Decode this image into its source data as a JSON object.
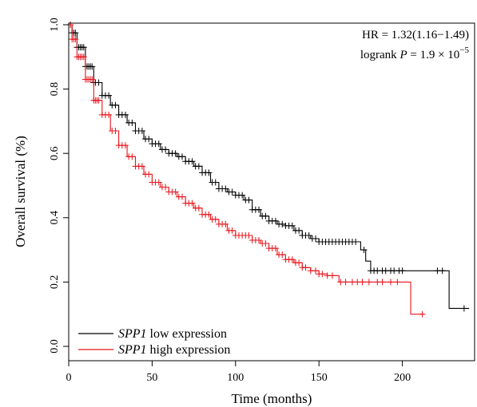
{
  "chart_data": {
    "type": "line",
    "subtype": "kaplan-meier",
    "xlabel": "Time (months)",
    "ylabel": "Overall survival (%)",
    "xlim": [
      0,
      240
    ],
    "ylim": [
      0,
      1
    ],
    "xticks": [
      "0",
      "50",
      "100",
      "150",
      "200"
    ],
    "yticks": [
      "0.0",
      "0.2",
      "0.4",
      "0.6",
      "0.8",
      "1.0"
    ],
    "annotations": {
      "hr": "HR = 1.32(1.16−1.49)",
      "logrank_prefix": "logrank ",
      "p_symbol": "P",
      "p_value": " = 1.9 × 10",
      "p_exponent": "−5"
    },
    "legend": {
      "position": "bottom-left",
      "entries": [
        {
          "gene": "SPP1",
          "label": " low expression",
          "color": "#000000"
        },
        {
          "gene": "SPP1",
          "label": " high expression",
          "color": "#e8141b"
        }
      ]
    },
    "series": [
      {
        "name": "SPP1 low expression",
        "color": "#000000",
        "points": [
          [
            0,
            1.0
          ],
          [
            2,
            0.975
          ],
          [
            5,
            0.93
          ],
          [
            10,
            0.87
          ],
          [
            15,
            0.82
          ],
          [
            20,
            0.78
          ],
          [
            25,
            0.75
          ],
          [
            30,
            0.72
          ],
          [
            35,
            0.695
          ],
          [
            40,
            0.67
          ],
          [
            45,
            0.645
          ],
          [
            50,
            0.63
          ],
          [
            55,
            0.612
          ],
          [
            60,
            0.6
          ],
          [
            65,
            0.59
          ],
          [
            70,
            0.575
          ],
          [
            75,
            0.56
          ],
          [
            80,
            0.54
          ],
          [
            85,
            0.51
          ],
          [
            90,
            0.49
          ],
          [
            95,
            0.48
          ],
          [
            100,
            0.47
          ],
          [
            105,
            0.455
          ],
          [
            110,
            0.425
          ],
          [
            115,
            0.405
          ],
          [
            120,
            0.39
          ],
          [
            125,
            0.38
          ],
          [
            130,
            0.375
          ],
          [
            135,
            0.36
          ],
          [
            140,
            0.345
          ],
          [
            145,
            0.335
          ],
          [
            150,
            0.325
          ],
          [
            160,
            0.325
          ],
          [
            172,
            0.325
          ],
          [
            175,
            0.3
          ],
          [
            178,
            0.265
          ],
          [
            181,
            0.235
          ],
          [
            200,
            0.235
          ],
          [
            228,
            0.235
          ],
          [
            228,
            0.118
          ],
          [
            240,
            0.118
          ]
        ],
        "censor_x": [
          1,
          2,
          3,
          4,
          5,
          6,
          7,
          8,
          9,
          10,
          11,
          12,
          13,
          14,
          15,
          16,
          18,
          20,
          22,
          24,
          26,
          28,
          30,
          32,
          34,
          36,
          38,
          40,
          42,
          44,
          46,
          48,
          50,
          52,
          54,
          56,
          58,
          60,
          62,
          64,
          66,
          68,
          70,
          72,
          74,
          76,
          78,
          80,
          82,
          84,
          86,
          88,
          90,
          92,
          94,
          96,
          98,
          100,
          102,
          104,
          106,
          108,
          110,
          112,
          114,
          116,
          118,
          120,
          122,
          124,
          126,
          128,
          130,
          132,
          134,
          136,
          138,
          140,
          142,
          144,
          146,
          148,
          150,
          152,
          154,
          156,
          158,
          160,
          162,
          164,
          166,
          168,
          170,
          172,
          177,
          181,
          183,
          185,
          188,
          190,
          193,
          195,
          198,
          200,
          221,
          224,
          237
        ]
      },
      {
        "name": "SPP1 high expression",
        "color": "#e8141b",
        "points": [
          [
            0,
            1.0
          ],
          [
            2,
            0.955
          ],
          [
            5,
            0.9
          ],
          [
            10,
            0.83
          ],
          [
            15,
            0.765
          ],
          [
            20,
            0.72
          ],
          [
            25,
            0.67
          ],
          [
            30,
            0.625
          ],
          [
            35,
            0.59
          ],
          [
            40,
            0.56
          ],
          [
            45,
            0.535
          ],
          [
            50,
            0.51
          ],
          [
            55,
            0.495
          ],
          [
            60,
            0.48
          ],
          [
            65,
            0.465
          ],
          [
            70,
            0.445
          ],
          [
            75,
            0.43
          ],
          [
            80,
            0.41
          ],
          [
            85,
            0.395
          ],
          [
            90,
            0.38
          ],
          [
            95,
            0.36
          ],
          [
            100,
            0.345
          ],
          [
            110,
            0.33
          ],
          [
            115,
            0.32
          ],
          [
            120,
            0.305
          ],
          [
            125,
            0.285
          ],
          [
            130,
            0.27
          ],
          [
            135,
            0.26
          ],
          [
            140,
            0.245
          ],
          [
            145,
            0.235
          ],
          [
            150,
            0.225
          ],
          [
            155,
            0.22
          ],
          [
            160,
            0.22
          ],
          [
            162,
            0.2
          ],
          [
            175,
            0.2
          ],
          [
            205,
            0.2
          ],
          [
            205,
            0.1
          ],
          [
            213,
            0.1
          ]
        ],
        "censor_x": [
          1,
          2,
          3,
          4,
          5,
          6,
          7,
          8,
          9,
          10,
          11,
          12,
          13,
          14,
          15,
          16,
          17,
          18,
          20,
          22,
          24,
          26,
          28,
          30,
          32,
          34,
          36,
          38,
          40,
          42,
          44,
          46,
          48,
          50,
          52,
          54,
          56,
          58,
          60,
          62,
          64,
          66,
          68,
          70,
          72,
          74,
          76,
          78,
          80,
          82,
          84,
          86,
          88,
          90,
          92,
          94,
          96,
          98,
          100,
          102,
          104,
          106,
          108,
          110,
          112,
          114,
          116,
          118,
          120,
          122,
          124,
          126,
          128,
          130,
          132,
          134,
          136,
          138,
          140,
          142,
          145,
          148,
          150,
          152,
          155,
          158,
          163,
          166,
          170,
          173,
          176,
          180,
          185,
          188,
          193,
          197,
          212
        ]
      }
    ]
  }
}
